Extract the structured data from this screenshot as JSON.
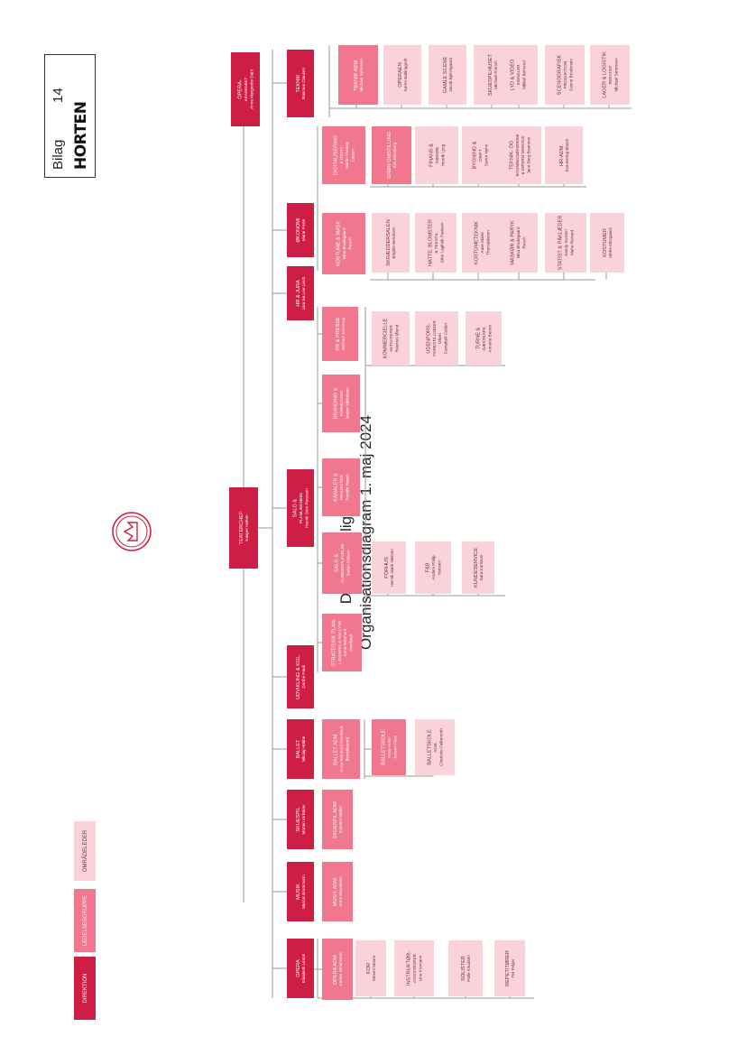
{
  "stamp": {
    "label": "Bilag",
    "number": "14",
    "logo": "HORTEN"
  },
  "title": {
    "line1": "Det Kongelige Teater",
    "line2": "Organisationsdiagram 1. maj 2024"
  },
  "logo_icon": "crown-emblem-icon",
  "colors": {
    "direktion": "#cf1e45",
    "ledelse": "#f0778d",
    "omraade": "#f9d3d9",
    "line": "#9a9a9a",
    "text_dark": "#3a3a3a"
  },
  "legend": [
    {
      "label": "DIREKTION",
      "level": "direktion"
    },
    {
      "label": "LEDELSESGRUPPE",
      "level": "ledelse"
    },
    {
      "label": "OMRÅDELEDER",
      "level": "omraade"
    }
  ],
  "boxes": {
    "teaterchef": {
      "lines": [
        "TEATERCHEF",
        "Kasper Holten"
      ],
      "level": "direktion"
    },
    "opera_akademiet": {
      "lines": [
        "OPERA-",
        "AKADEMIET",
        "Anne Margrethe Dahl"
      ],
      "level": "direktion"
    },
    "opera": {
      "lines": [
        "OPERA",
        "Elisabeth Linton"
      ],
      "level": "direktion"
    },
    "musik": {
      "lines": [
        "MUSIK",
        "Marcin Brommann"
      ],
      "level": "direktion"
    },
    "skuespil": {
      "lines": [
        "SKUESPIL",
        "Morten Kirkskov"
      ],
      "level": "direktion"
    },
    "ballet": {
      "lines": [
        "BALLET",
        "Nikolaj Hübbe"
      ],
      "level": "direktion"
    },
    "udvikling": {
      "lines": [
        "UDVIKLING & KGL.",
        "Dorthe Pauli"
      ],
      "level": "direktion"
    },
    "salg": {
      "lines": [
        "SALG &",
        "PLANLÆGNING",
        "Henrik Sten Petersen"
      ],
      "level": "direktion"
    },
    "hr": {
      "lines": [
        "HR & JURA",
        "Lisa Iva Lee Lisch"
      ],
      "level": "direktion"
    },
    "okonomi": {
      "lines": [
        "ØKONOMI",
        "Marie Posle"
      ],
      "level": "direktion"
    },
    "teknik": {
      "lines": [
        "TEKNIK",
        "Rasmus Clausen"
      ],
      "level": "direktion"
    },
    "opera_adm": {
      "lines": [
        "OPERA ADM.",
        "Carine Johansson"
      ],
      "level": "ledelse"
    },
    "kor": {
      "lines": [
        "KOR",
        "Steven Moore"
      ],
      "level": "omraade"
    },
    "instruktor": {
      "lines": [
        "INSTRUKTØR-",
        "ASSISTENTER",
        "Line Kromann"
      ],
      "level": "omraade"
    },
    "solister": {
      "lines": [
        "SOLISTER",
        "Palle Knudsen"
      ],
      "level": "omraade"
    },
    "repetitorer": {
      "lines": [
        "REPETITØRER",
        "Ovi Falger"
      ],
      "level": "omraade"
    },
    "musik_adm": {
      "lines": [
        "MUSIK ADM.",
        "Anne Nicolaisen"
      ],
      "level": "ledelse"
    },
    "skuespil_adm": {
      "lines": [
        "SKUESPIL ADM.",
        "Carsten Møller"
      ],
      "level": "ledelse"
    },
    "ballet_adm": {
      "lines": [
        "BALLET ADM.",
        "Anna Reinhard Overbeck",
        "(konstitueret)"
      ],
      "level": "ledelse"
    },
    "balletskole": {
      "lines": [
        "BALLETSKOLE",
        "Anne Holm-",
        "Jensen Feys"
      ],
      "level": "ledelse"
    },
    "balletskole_adm": {
      "lines": [
        "BALLETSKOLE",
        "ADM.",
        "Charlotte Falkenroth"
      ],
      "level": "omraade"
    },
    "strategisk": {
      "lines": [
        "STRATEGISK PLAN-",
        "LÆGNING & ANALYSE",
        "Anna Reinhard",
        "Overbeck"
      ],
      "level": "ledelse"
    },
    "salg_kunde": {
      "lines": [
        "SALG &",
        "KUNDEOPLEVELSE",
        "Stefan Oldsen"
      ],
      "level": "ledelse"
    },
    "forhus": {
      "lines": [
        "FORHUS",
        "Henrik Mørk Nielsen"
      ],
      "level": "omraade"
    },
    "fb": {
      "lines": [
        "F&B",
        "Anders Philip",
        "Hansen"
      ],
      "level": "omraade"
    },
    "kundeservice": {
      "lines": [
        "KUNDESERVICE",
        "Sara Karlsson"
      ],
      "level": "omraade"
    },
    "kanaler": {
      "lines": [
        "KANALER &",
        "PROJEKTER",
        "Pernille Rasch"
      ],
      "level": "ledelse"
    },
    "branding": {
      "lines": [
        "BRANDING &",
        "FORMIDLING",
        "Jesper Mikkelsen"
      ],
      "level": "ledelse"
    },
    "pr_presse": {
      "lines": [
        "PR & PRESSE",
        "Michael Jannerup"
      ],
      "level": "ledelse"
    },
    "kommercielle": {
      "lines": [
        "KOMMERCIELLE",
        "AKTIVITETER",
        "Rasmus Ølund"
      ],
      "level": "omraade"
    },
    "udenfors": {
      "lines": [
        "UDENFORS-",
        "FORESTILLINGER",
        "Oliver",
        "Campbell-Calder"
      ],
      "level": "omraade"
    },
    "turne": {
      "lines": [
        "TURNÉ &",
        "GÆSTESPIL",
        "Annette Berner"
      ],
      "level": "omraade"
    },
    "digitalisering": {
      "lines": [
        "DIGITALISERING",
        "& IT/KRY",
        "Martin Thesnip",
        "Larsen"
      ],
      "level": "ledelse"
    },
    "gron": {
      "lines": [
        "GRØN OMSTILLING",
        "Kim Ericsberg"
      ],
      "level": "ledelse"
    },
    "finans": {
      "lines": [
        "FINANS &",
        "INDKØB",
        "Henrik Lyng"
      ],
      "level": "omraade"
    },
    "bygning": {
      "lines": [
        "BYGNING &",
        "DRIFT",
        "Søren Nyhn"
      ],
      "level": "omraade"
    },
    "teknik_okonomi": {
      "lines": [
        "TEKNIK- OG",
        "BYGNINGSØKONOMI",
        "& INTERN SERVICE",
        "Jane Berg Brammer"
      ],
      "level": "omraade"
    },
    "hr_adm": {
      "lines": [
        "HR-ADM.",
        "Eva Bering Bloom"
      ],
      "level": "omraade"
    },
    "kostume": {
      "lines": [
        "KOSTUME & MASK",
        "Nina Brodegaard",
        "Resch"
      ],
      "level": "ledelse"
    },
    "skraedder": {
      "lines": [
        "SKRÆDDERSALEN",
        "Birgitte Bendtsen"
      ],
      "level": "omraade"
    },
    "hatte": {
      "lines": [
        "HATTE, BLOMSTER",
        "& TEKSTIL",
        "Gitte Lagihuk Paulsen"
      ],
      "level": "omraade"
    },
    "kostumeteknik": {
      "lines": [
        "KOSTUMETEKNIK",
        "Aase Marie",
        "Thorvaldsson"
      ],
      "level": "omraade"
    },
    "masker": {
      "lines": [
        "MASKØR & PARYK",
        "Nina Brodegaard",
        "Resch"
      ],
      "level": "omraade"
    },
    "statist": {
      "lines": [
        "STATIST & PÅKLÆDER",
        "Sandy Gordon",
        "Mahe-Renard"
      ],
      "level": "omraade"
    },
    "kostumer": {
      "lines": [
        "KOSTUMER",
        "Mette Klitsgaard"
      ],
      "level": "omraade"
    },
    "teknik_adm": {
      "lines": [
        "TEKNIK ADM.",
        "Michael Sørensen"
      ],
      "level": "ledelse"
    },
    "operaen": {
      "lines": [
        "OPERAEN",
        "Søren Baltinggroft"
      ],
      "level": "omraade"
    },
    "gamle_scene": {
      "lines": [
        "GAMLE SCENE",
        "Jacob Bjerregaard"
      ],
      "level": "omraade"
    },
    "skuespilhuset": {
      "lines": [
        "SKUESPILHUSET",
        "Michael French"
      ],
      "level": "omraade"
    },
    "lyd_video": {
      "lines": [
        "LYD & VIDEO",
        "SIGNALER",
        "Mikkel Behrend"
      ],
      "level": "omraade"
    },
    "scenografisk": {
      "lines": [
        "SCENOGRAFISK",
        "PRODUKTION",
        "Sanne Brodersen"
      ],
      "level": "omraade"
    },
    "lager": {
      "lines": [
        "LAGER & LOGISTIK",
        "REKVISIT",
        "Michael Sørensen"
      ],
      "level": "omraade"
    }
  }
}
